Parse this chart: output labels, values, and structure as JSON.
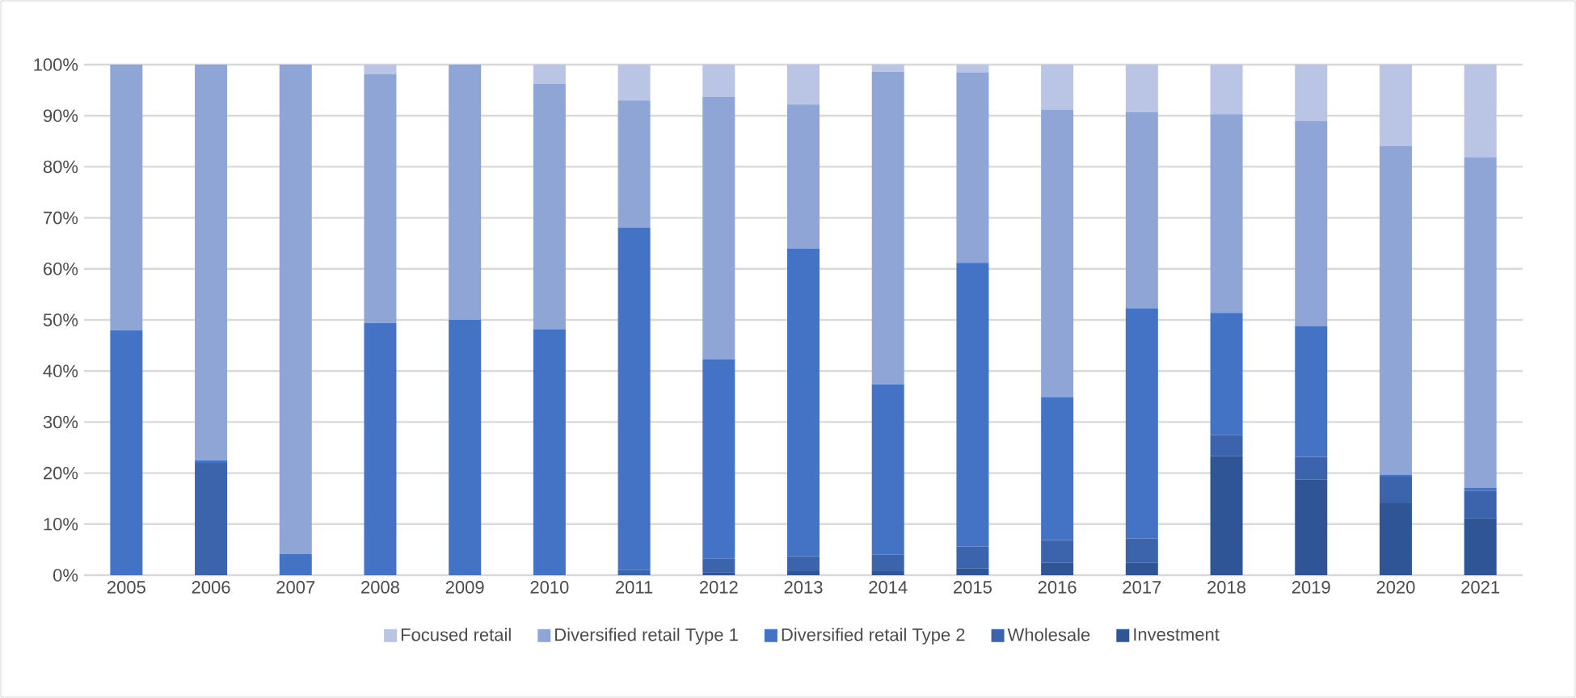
{
  "chart_data": {
    "type": "bar",
    "stacked": true,
    "categories": [
      "2005",
      "2006",
      "2007",
      "2008",
      "2009",
      "2010",
      "2011",
      "2012",
      "2013",
      "2014",
      "2015",
      "2016",
      "2017",
      "2018",
      "2019",
      "2020",
      "2021"
    ],
    "series": [
      {
        "name": "Investment",
        "color": "#2f5597",
        "values": [
          0,
          0,
          0,
          0,
          0,
          0,
          0,
          0.6,
          0.8,
          0.8,
          1.3,
          2.4,
          2.4,
          23.3,
          18.7,
          14.1,
          11.2
        ]
      },
      {
        "name": "Wholesale",
        "color": "#3c64ac",
        "values": [
          0,
          22,
          0,
          0,
          0,
          0,
          1,
          2.6,
          2.9,
          3.2,
          4.3,
          4.5,
          4.8,
          4.1,
          4.5,
          5.2,
          5.3
        ]
      },
      {
        "name": "Diversified retail Type 2",
        "color": "#4472c4",
        "values": [
          48,
          0.5,
          4.2,
          49.4,
          50,
          48.2,
          67.1,
          39.1,
          60.3,
          33.4,
          55.6,
          28.0,
          45.1,
          24.0,
          25.6,
          0.4,
          0.6
        ]
      },
      {
        "name": "Diversified retail Type 1",
        "color": "#8fa5d5",
        "values": [
          52,
          77.5,
          95.8,
          48.8,
          50,
          48.1,
          24.9,
          51.4,
          28.2,
          61.2,
          37.3,
          56.3,
          38.4,
          38.9,
          40.2,
          64.4,
          64.7
        ]
      },
      {
        "name": "Focused retail",
        "color": "#bac4e4",
        "values": [
          0,
          0,
          0,
          1.8,
          0,
          3.7,
          7,
          6.3,
          7.8,
          1.4,
          1.5,
          8.8,
          9.3,
          9.7,
          11,
          15.9,
          18.2
        ]
      }
    ],
    "ylim": [
      0,
      100
    ],
    "yticks": [
      {
        "value": 0,
        "label": "0%"
      },
      {
        "value": 10,
        "label": "10%"
      },
      {
        "value": 20,
        "label": "20%"
      },
      {
        "value": 30,
        "label": "30%"
      },
      {
        "value": 40,
        "label": "40%"
      },
      {
        "value": 50,
        "label": "50%"
      },
      {
        "value": 60,
        "label": "60%"
      },
      {
        "value": 70,
        "label": "70%"
      },
      {
        "value": 80,
        "label": "80%"
      },
      {
        "value": 90,
        "label": "90%"
      },
      {
        "value": 100,
        "label": "100%"
      }
    ],
    "grid": "y",
    "legend": "bottom"
  }
}
